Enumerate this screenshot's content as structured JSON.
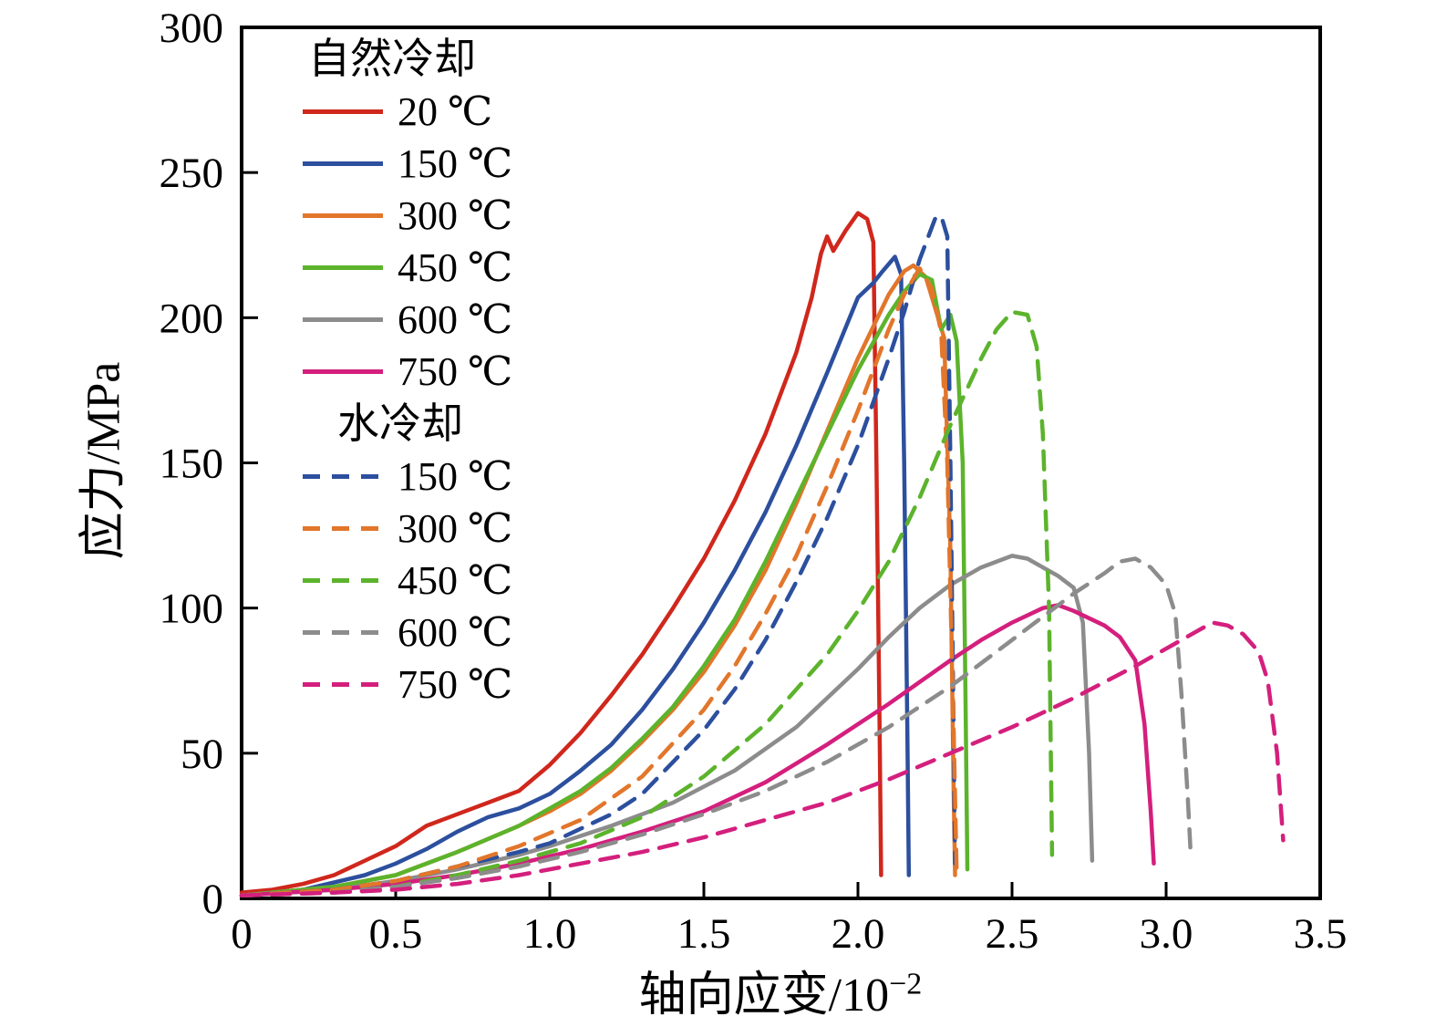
{
  "chart_data": {
    "type": "line",
    "title": "",
    "xlabel": "轴向应变/10⁻²",
    "xlabel_base": "轴向应变/10",
    "xlabel_exp": "−2",
    "ylabel": "应力/MPa",
    "xlim": [
      0,
      3.5
    ],
    "ylim": [
      0,
      300
    ],
    "grid": false,
    "legend_position": "upper-left-inside",
    "xticks": [
      0,
      0.5,
      1.0,
      1.5,
      2.0,
      2.5,
      3.0,
      3.5
    ],
    "xtick_labels": [
      "0",
      "0.5",
      "1.0",
      "1.5",
      "2.0",
      "2.5",
      "3.0",
      "3.5"
    ],
    "yticks": [
      0,
      50,
      100,
      150,
      200,
      250,
      300
    ],
    "ytick_labels": [
      "0",
      "50",
      "100",
      "150",
      "200",
      "250",
      "300"
    ],
    "legend_groups": [
      {
        "title": "自然冷却"
      },
      {
        "title": "水冷却"
      }
    ],
    "series": [
      {
        "name": "20 ℃",
        "cooling": "自然冷却",
        "color": "#d0271c",
        "dashed": false,
        "points": [
          [
            0,
            2
          ],
          [
            0.1,
            3
          ],
          [
            0.2,
            5
          ],
          [
            0.3,
            8
          ],
          [
            0.4,
            13
          ],
          [
            0.5,
            18
          ],
          [
            0.6,
            25
          ],
          [
            0.7,
            29
          ],
          [
            0.75,
            31
          ],
          [
            0.8,
            33
          ],
          [
            0.9,
            37
          ],
          [
            1.0,
            46
          ],
          [
            1.1,
            57
          ],
          [
            1.2,
            70
          ],
          [
            1.3,
            84
          ],
          [
            1.4,
            100
          ],
          [
            1.5,
            117
          ],
          [
            1.6,
            137
          ],
          [
            1.7,
            160
          ],
          [
            1.8,
            188
          ],
          [
            1.85,
            207
          ],
          [
            1.88,
            222
          ],
          [
            1.9,
            228
          ],
          [
            1.92,
            223
          ],
          [
            1.96,
            230
          ],
          [
            2.0,
            236
          ],
          [
            2.03,
            234
          ],
          [
            2.05,
            226
          ],
          [
            2.06,
            150
          ],
          [
            2.07,
            60
          ],
          [
            2.075,
            8
          ]
        ]
      },
      {
        "name": "150 ℃",
        "cooling": "自然冷却",
        "color": "#2c4f9e",
        "dashed": false,
        "points": [
          [
            0,
            1
          ],
          [
            0.2,
            3
          ],
          [
            0.4,
            8
          ],
          [
            0.5,
            12
          ],
          [
            0.6,
            17
          ],
          [
            0.7,
            23
          ],
          [
            0.8,
            28
          ],
          [
            0.9,
            31
          ],
          [
            1.0,
            36
          ],
          [
            1.1,
            44
          ],
          [
            1.2,
            53
          ],
          [
            1.3,
            65
          ],
          [
            1.4,
            79
          ],
          [
            1.5,
            95
          ],
          [
            1.6,
            113
          ],
          [
            1.7,
            133
          ],
          [
            1.8,
            156
          ],
          [
            1.9,
            181
          ],
          [
            2.0,
            207
          ],
          [
            2.05,
            212
          ],
          [
            2.08,
            216
          ],
          [
            2.12,
            221
          ],
          [
            2.14,
            215
          ],
          [
            2.15,
            150
          ],
          [
            2.16,
            60
          ],
          [
            2.165,
            8
          ]
        ]
      },
      {
        "name": "300 ℃",
        "cooling": "自然冷却",
        "color": "#e2762b",
        "dashed": false,
        "points": [
          [
            0,
            1
          ],
          [
            0.3,
            4
          ],
          [
            0.5,
            8
          ],
          [
            0.7,
            16
          ],
          [
            0.9,
            25
          ],
          [
            1.0,
            30
          ],
          [
            1.1,
            36
          ],
          [
            1.2,
            44
          ],
          [
            1.3,
            54
          ],
          [
            1.4,
            65
          ],
          [
            1.5,
            78
          ],
          [
            1.6,
            94
          ],
          [
            1.7,
            113
          ],
          [
            1.8,
            136
          ],
          [
            1.9,
            161
          ],
          [
            2.0,
            186
          ],
          [
            2.1,
            208
          ],
          [
            2.15,
            216
          ],
          [
            2.18,
            218
          ],
          [
            2.22,
            214
          ],
          [
            2.26,
            200
          ],
          [
            2.28,
            193
          ],
          [
            2.3,
            120
          ],
          [
            2.31,
            40
          ],
          [
            2.315,
            8
          ]
        ]
      },
      {
        "name": "450 ℃",
        "cooling": "自然冷却",
        "color": "#5cb32c",
        "dashed": false,
        "points": [
          [
            0,
            1
          ],
          [
            0.3,
            4
          ],
          [
            0.5,
            8
          ],
          [
            0.7,
            16
          ],
          [
            0.9,
            25
          ],
          [
            1.0,
            31
          ],
          [
            1.1,
            37
          ],
          [
            1.2,
            45
          ],
          [
            1.3,
            55
          ],
          [
            1.4,
            66
          ],
          [
            1.5,
            80
          ],
          [
            1.6,
            96
          ],
          [
            1.7,
            116
          ],
          [
            1.8,
            138
          ],
          [
            1.9,
            160
          ],
          [
            2.0,
            182
          ],
          [
            2.1,
            201
          ],
          [
            2.15,
            209
          ],
          [
            2.2,
            215
          ],
          [
            2.24,
            213
          ],
          [
            2.27,
            196
          ],
          [
            2.3,
            201
          ],
          [
            2.32,
            192
          ],
          [
            2.34,
            150
          ],
          [
            2.35,
            60
          ],
          [
            2.355,
            10
          ]
        ]
      },
      {
        "name": "600 ℃",
        "cooling": "自然冷却",
        "color": "#8c8c8c",
        "dashed": false,
        "points": [
          [
            0,
            1
          ],
          [
            0.3,
            3
          ],
          [
            0.5,
            6
          ],
          [
            0.7,
            10
          ],
          [
            0.9,
            15
          ],
          [
            1.0,
            18
          ],
          [
            1.2,
            25
          ],
          [
            1.4,
            33
          ],
          [
            1.6,
            44
          ],
          [
            1.8,
            59
          ],
          [
            2.0,
            79
          ],
          [
            2.1,
            90
          ],
          [
            2.2,
            100
          ],
          [
            2.3,
            108
          ],
          [
            2.4,
            114
          ],
          [
            2.5,
            118
          ],
          [
            2.55,
            117
          ],
          [
            2.6,
            114
          ],
          [
            2.65,
            111
          ],
          [
            2.7,
            107
          ],
          [
            2.73,
            95
          ],
          [
            2.75,
            50
          ],
          [
            2.76,
            13
          ]
        ]
      },
      {
        "name": "750 ℃",
        "cooling": "自然冷却",
        "color": "#d41f7d",
        "dashed": false,
        "points": [
          [
            0,
            1
          ],
          [
            0.3,
            3
          ],
          [
            0.5,
            5
          ],
          [
            0.7,
            8
          ],
          [
            0.9,
            12
          ],
          [
            1.1,
            17
          ],
          [
            1.3,
            23
          ],
          [
            1.5,
            30
          ],
          [
            1.7,
            40
          ],
          [
            1.9,
            53
          ],
          [
            2.1,
            67
          ],
          [
            2.3,
            82
          ],
          [
            2.4,
            89
          ],
          [
            2.5,
            95
          ],
          [
            2.6,
            100
          ],
          [
            2.65,
            101
          ],
          [
            2.7,
            99
          ],
          [
            2.8,
            94
          ],
          [
            2.85,
            90
          ],
          [
            2.9,
            82
          ],
          [
            2.93,
            60
          ],
          [
            2.95,
            30
          ],
          [
            2.96,
            12
          ]
        ]
      },
      {
        "name": "150 ℃",
        "cooling": "水冷却",
        "color": "#2c4f9e",
        "dashed": true,
        "points": [
          [
            0,
            1
          ],
          [
            0.3,
            3
          ],
          [
            0.5,
            6
          ],
          [
            0.7,
            11
          ],
          [
            0.9,
            16
          ],
          [
            1.0,
            19
          ],
          [
            1.1,
            24
          ],
          [
            1.2,
            29
          ],
          [
            1.3,
            36
          ],
          [
            1.4,
            47
          ],
          [
            1.5,
            58
          ],
          [
            1.6,
            72
          ],
          [
            1.7,
            89
          ],
          [
            1.8,
            109
          ],
          [
            1.9,
            131
          ],
          [
            2.0,
            156
          ],
          [
            2.1,
            186
          ],
          [
            2.15,
            202
          ],
          [
            2.2,
            220
          ],
          [
            2.25,
            234
          ],
          [
            2.27,
            235
          ],
          [
            2.29,
            228
          ],
          [
            2.3,
            150
          ],
          [
            2.31,
            60
          ],
          [
            2.315,
            12
          ]
        ]
      },
      {
        "name": "300 ℃",
        "cooling": "水冷却",
        "color": "#e2762b",
        "dashed": true,
        "points": [
          [
            0,
            1
          ],
          [
            0.3,
            3
          ],
          [
            0.5,
            6
          ],
          [
            0.7,
            11
          ],
          [
            0.9,
            18
          ],
          [
            1.1,
            27
          ],
          [
            1.3,
            42
          ],
          [
            1.5,
            65
          ],
          [
            1.6,
            80
          ],
          [
            1.7,
            98
          ],
          [
            1.8,
            118
          ],
          [
            1.9,
            142
          ],
          [
            2.0,
            168
          ],
          [
            2.1,
            196
          ],
          [
            2.15,
            208
          ],
          [
            2.2,
            217
          ],
          [
            2.24,
            210
          ],
          [
            2.27,
            195
          ],
          [
            2.29,
            150
          ],
          [
            2.31,
            60
          ],
          [
            2.32,
            10
          ]
        ]
      },
      {
        "name": "450 ℃",
        "cooling": "水冷却",
        "color": "#5cb32c",
        "dashed": true,
        "points": [
          [
            0,
            1
          ],
          [
            0.3,
            2
          ],
          [
            0.5,
            4
          ],
          [
            0.7,
            8
          ],
          [
            0.9,
            13
          ],
          [
            1.1,
            19
          ],
          [
            1.3,
            28
          ],
          [
            1.5,
            42
          ],
          [
            1.7,
            60
          ],
          [
            1.9,
            84
          ],
          [
            2.0,
            99
          ],
          [
            2.1,
            116
          ],
          [
            2.2,
            138
          ],
          [
            2.3,
            163
          ],
          [
            2.4,
            186
          ],
          [
            2.45,
            196
          ],
          [
            2.5,
            202
          ],
          [
            2.55,
            201
          ],
          [
            2.58,
            190
          ],
          [
            2.6,
            160
          ],
          [
            2.62,
            100
          ],
          [
            2.63,
            15
          ]
        ]
      },
      {
        "name": "600 ℃",
        "cooling": "水冷却",
        "color": "#8c8c8c",
        "dashed": true,
        "points": [
          [
            0,
            1
          ],
          [
            0.3,
            2
          ],
          [
            0.5,
            4
          ],
          [
            0.7,
            7
          ],
          [
            0.9,
            11
          ],
          [
            1.1,
            16
          ],
          [
            1.3,
            22
          ],
          [
            1.5,
            29
          ],
          [
            1.7,
            37
          ],
          [
            1.9,
            47
          ],
          [
            2.1,
            59
          ],
          [
            2.3,
            73
          ],
          [
            2.5,
            89
          ],
          [
            2.6,
            97
          ],
          [
            2.7,
            105
          ],
          [
            2.8,
            112
          ],
          [
            2.85,
            116
          ],
          [
            2.9,
            117
          ],
          [
            2.95,
            114
          ],
          [
            3.0,
            108
          ],
          [
            3.03,
            98
          ],
          [
            3.05,
            70
          ],
          [
            3.07,
            35
          ],
          [
            3.08,
            15
          ]
        ]
      },
      {
        "name": "750 ℃",
        "cooling": "水冷却",
        "color": "#d41f7d",
        "dashed": true,
        "points": [
          [
            0,
            1
          ],
          [
            0.3,
            2
          ],
          [
            0.5,
            3
          ],
          [
            0.7,
            5
          ],
          [
            0.9,
            8
          ],
          [
            1.1,
            12
          ],
          [
            1.3,
            16
          ],
          [
            1.5,
            21
          ],
          [
            1.7,
            27
          ],
          [
            1.9,
            33
          ],
          [
            2.1,
            41
          ],
          [
            2.3,
            50
          ],
          [
            2.5,
            59
          ],
          [
            2.7,
            69
          ],
          [
            2.9,
            80
          ],
          [
            3.0,
            86
          ],
          [
            3.1,
            92
          ],
          [
            3.15,
            95
          ],
          [
            3.2,
            94
          ],
          [
            3.25,
            91
          ],
          [
            3.3,
            85
          ],
          [
            3.33,
            75
          ],
          [
            3.36,
            50
          ],
          [
            3.38,
            20
          ]
        ]
      }
    ]
  }
}
